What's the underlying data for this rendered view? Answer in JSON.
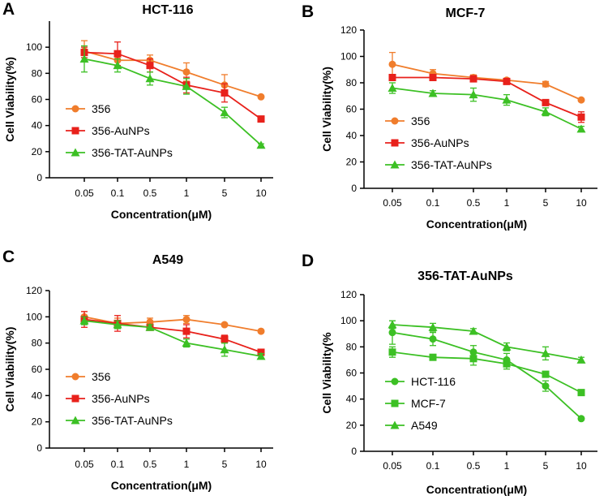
{
  "chart_data": [
    {
      "panel": "A",
      "type": "line",
      "title": "HCT-116",
      "xlabel": "Concentration(μM)",
      "ylabel": "Cell Viability(%)",
      "categories": [
        "0.05",
        "0.1",
        "0.5",
        "1",
        "5",
        "10"
      ],
      "ylim": [
        0,
        120
      ],
      "yticks": [
        0,
        20,
        40,
        60,
        80,
        100
      ],
      "series": [
        {
          "name": "356",
          "color": "#f07d2c",
          "marker": "circle",
          "values": [
            97,
            90,
            90,
            81,
            71,
            62
          ],
          "errors": [
            8,
            5,
            4,
            7,
            8,
            0
          ]
        },
        {
          "name": "356-AuNPs",
          "color": "#e8211b",
          "marker": "square",
          "values": [
            96,
            95,
            86,
            71,
            65,
            45
          ],
          "errors": [
            4,
            9,
            5,
            6,
            7,
            2
          ]
        },
        {
          "name": "356-TAT-AuNPs",
          "color": "#3cc024",
          "marker": "triangle",
          "values": [
            91,
            86,
            76,
            70,
            50,
            25
          ],
          "errors": [
            10,
            5,
            5,
            6,
            4,
            1
          ]
        }
      ]
    },
    {
      "panel": "B",
      "type": "line",
      "title": "MCF-7",
      "xlabel": "Concentration(μM)",
      "ylabel": "Cell Viability(%)",
      "categories": [
        "0.05",
        "0.1",
        "0.5",
        "1",
        "5",
        "10"
      ],
      "ylim": [
        0,
        120
      ],
      "yticks": [
        0,
        20,
        40,
        60,
        80,
        100,
        120
      ],
      "series": [
        {
          "name": "356",
          "color": "#f07d2c",
          "marker": "circle",
          "values": [
            94,
            87,
            84,
            82,
            79,
            67
          ],
          "errors": [
            9,
            3,
            2,
            1,
            2,
            1
          ]
        },
        {
          "name": "356-AuNPs",
          "color": "#e8211b",
          "marker": "square",
          "values": [
            84,
            84,
            83,
            81,
            65,
            54
          ],
          "errors": [
            1,
            2,
            1,
            1,
            1,
            4
          ]
        },
        {
          "name": "356-TAT-AuNPs",
          "color": "#3cc024",
          "marker": "triangle",
          "values": [
            76,
            72,
            71,
            67,
            58,
            45
          ],
          "errors": [
            4,
            2,
            5,
            4,
            3,
            2
          ]
        }
      ]
    },
    {
      "panel": "C",
      "type": "line",
      "title": "A549",
      "xlabel": "Concentration(μM)",
      "ylabel": "Cell Viability(%)",
      "categories": [
        "0.05",
        "0.1",
        "0.5",
        "1",
        "5",
        "10"
      ],
      "ylim": [
        0,
        120
      ],
      "yticks": [
        0,
        20,
        40,
        60,
        80,
        100,
        120
      ],
      "series": [
        {
          "name": "356",
          "color": "#f07d2c",
          "marker": "circle",
          "values": [
            100,
            95,
            96,
            98,
            94,
            89
          ],
          "errors": [
            4,
            4,
            3,
            3,
            1,
            1
          ]
        },
        {
          "name": "356-AuNPs",
          "color": "#e8211b",
          "marker": "square",
          "values": [
            98,
            95,
            92,
            89,
            83,
            73
          ],
          "errors": [
            6,
            6,
            2,
            5,
            3,
            1
          ]
        },
        {
          "name": "356-TAT-AuNPs",
          "color": "#3cc024",
          "marker": "triangle",
          "values": [
            97,
            94,
            92,
            80,
            75,
            70
          ],
          "errors": [
            3,
            3,
            2,
            3,
            5,
            2
          ]
        }
      ]
    },
    {
      "panel": "D",
      "type": "line",
      "title": "356-TAT-AuNPs",
      "xlabel": "Concentration(μM)",
      "ylabel": "Cell Viability(%",
      "categories": [
        "0.05",
        "0.1",
        "0.5",
        "1",
        "5",
        "10"
      ],
      "ylim": [
        0,
        120
      ],
      "yticks": [
        0,
        20,
        40,
        60,
        80,
        100,
        120
      ],
      "series": [
        {
          "name": "HCT-116",
          "color": "#3cc024",
          "marker": "circle",
          "values": [
            91,
            86,
            76,
            70,
            50,
            25
          ],
          "errors": [
            9,
            5,
            5,
            5,
            4,
            1
          ]
        },
        {
          "name": "MCF-7",
          "color": "#3cc024",
          "marker": "square",
          "values": [
            76,
            72,
            71,
            67,
            59,
            45
          ],
          "errors": [
            4,
            2,
            5,
            4,
            2,
            1
          ]
        },
        {
          "name": "A549",
          "color": "#3cc024",
          "marker": "triangle",
          "values": [
            97,
            95,
            92,
            80,
            75,
            70
          ],
          "errors": [
            3,
            3,
            2,
            3,
            5,
            2
          ]
        }
      ]
    }
  ]
}
